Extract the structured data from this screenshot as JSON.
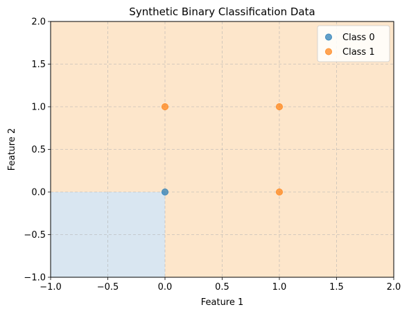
{
  "chart_data": {
    "type": "scatter",
    "title": "Synthetic Binary Classification Data",
    "xlabel": "Feature 1",
    "ylabel": "Feature 2",
    "xlim": [
      -1.0,
      2.0
    ],
    "ylim": [
      -1.0,
      2.0
    ],
    "xticks": [
      "−1.0",
      "−0.5",
      "0.0",
      "0.5",
      "1.0",
      "1.5",
      "2.0"
    ],
    "yticks": [
      "−1.0",
      "−0.5",
      "0.0",
      "0.5",
      "1.0",
      "1.5",
      "2.0"
    ],
    "xtick_values": [
      -1.0,
      -0.5,
      0.0,
      0.5,
      1.0,
      1.5,
      2.0
    ],
    "ytick_values": [
      -1.0,
      -0.5,
      0.0,
      0.5,
      1.0,
      1.5,
      2.0
    ],
    "grid": true,
    "legend_position": "top-right",
    "decision_regions": [
      {
        "class": 0,
        "x": [
          -1.0,
          0.0
        ],
        "y": [
          -1.0,
          0.0
        ],
        "color": "#d9e6f1"
      },
      {
        "class": 1,
        "background": true,
        "color": "#fde6cb"
      }
    ],
    "series": [
      {
        "name": "Class 0",
        "color": "#1f77b4",
        "points": [
          [
            0,
            0
          ]
        ]
      },
      {
        "name": "Class 1",
        "color": "#ff7f0e",
        "points": [
          [
            0,
            1
          ],
          [
            1,
            0
          ],
          [
            1,
            1
          ]
        ]
      }
    ]
  }
}
